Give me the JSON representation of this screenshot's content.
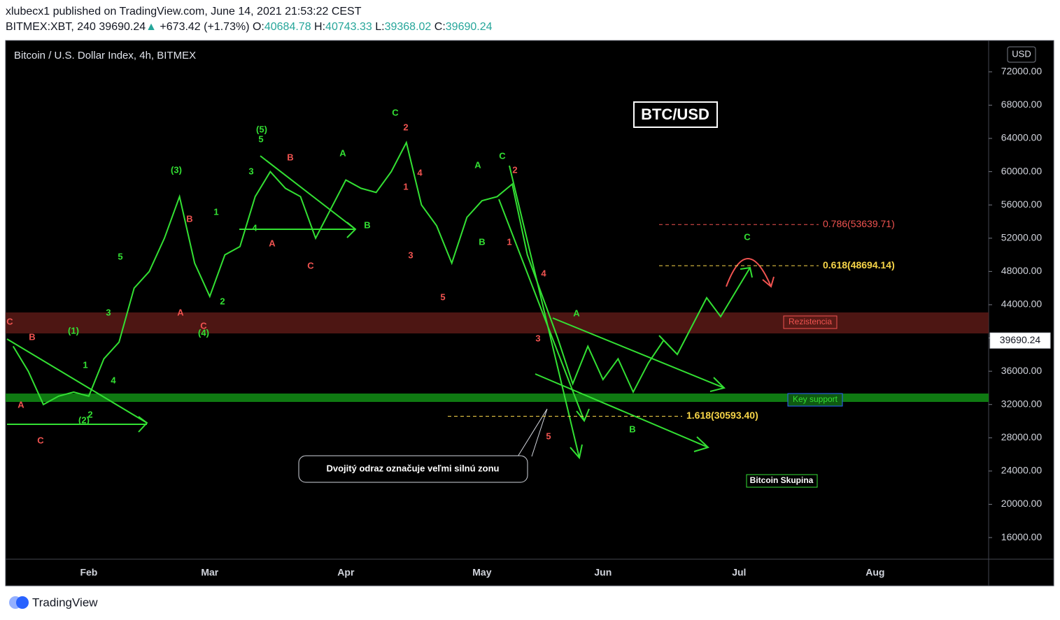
{
  "header": {
    "published": "xlubecx1 published on TradingView.com, June 14, 2021 21:53:22 CEST",
    "symbol": "BITMEX:XBT, 240",
    "last": "39690.24",
    "arrow": "▲",
    "change": "+673.42 (+1.73%)",
    "o_label": "O:",
    "open": "40684.78",
    "h_label": "H:",
    "high": "40743.33",
    "l_label": "L:",
    "low": "39368.02",
    "c_label": "C:",
    "close": "39690.24"
  },
  "footer": {
    "brand": "TradingView"
  },
  "chart_data": {
    "type": "line",
    "title": "Bitcoin / U.S. Dollar Index, 4h, BITMEX",
    "currency": "USD",
    "badge": "BTC/USD",
    "color": "#33e033",
    "categories": [
      null,
      null,
      null,
      null,
      null,
      "Feb",
      null,
      null,
      null,
      null,
      null,
      null,
      null,
      "Mar",
      null,
      null,
      null,
      null,
      null,
      null,
      null,
      null,
      "Apr",
      null,
      null,
      null,
      null,
      null,
      null,
      null,
      null,
      "May",
      null,
      null,
      null,
      null,
      null,
      null,
      null,
      "Jun",
      null,
      null,
      null,
      null,
      null,
      null,
      null,
      null,
      "Jul",
      null,
      null,
      null,
      null,
      null,
      null,
      null,
      null,
      "Aug",
      null,
      null,
      null,
      null,
      null,
      null,
      null
    ],
    "values": [
      39000,
      36000,
      32000,
      33000,
      33500,
      33000,
      37500,
      39500,
      46000,
      48000,
      52000,
      57000,
      49000,
      45000,
      50000,
      51000,
      57000,
      60000,
      58000,
      57000,
      52000,
      55500,
      59000,
      58000,
      57500,
      60000,
      63500,
      56000,
      53500,
      49000,
      54500,
      56500,
      57000,
      58500,
      50000,
      45000,
      40000,
      34500,
      39000,
      35000,
      37500,
      33500,
      37000,
      39690.24,
      null,
      null,
      null,
      null,
      null,
      null,
      null,
      null,
      null,
      null,
      null,
      null,
      null,
      null,
      null,
      null,
      null,
      null,
      null,
      null,
      null
    ],
    "ylim": [
      13400,
      75600
    ],
    "yticks": [
      {
        "value": 16000,
        "label": "16000.00"
      },
      {
        "value": 20000,
        "label": "20000.00"
      },
      {
        "value": 24000,
        "label": "24000.00"
      },
      {
        "value": 28000,
        "label": "28000.00"
      },
      {
        "value": 32000,
        "label": "32000.00"
      },
      {
        "value": 36000,
        "label": "36000.00"
      },
      {
        "value": 40000,
        "label": "40000.00"
      },
      {
        "value": 44000,
        "label": "44000.00"
      },
      {
        "value": 48000,
        "label": "48000.00"
      },
      {
        "value": 52000,
        "label": "52000.00"
      },
      {
        "value": 56000,
        "label": "56000.00"
      },
      {
        "value": 60000,
        "label": "60000.00"
      },
      {
        "value": 64000,
        "label": "64000.00"
      },
      {
        "value": 68000,
        "label": "68000.00"
      },
      {
        "value": 72000,
        "label": "72000.00"
      }
    ],
    "fib_levels": [
      {
        "value": 53639.71,
        "label": "0.786(53639.71)",
        "color": "#f05350"
      },
      {
        "value": 48694.14,
        "label": "0.618(48694.14)",
        "color": "#f7d548"
      },
      {
        "value": 30593.4,
        "label": "1.618(30593.40)",
        "color": "#f7d548"
      }
    ],
    "zones": {
      "resistance": "Rezistencia",
      "support": "Key support",
      "group": "Bitcoin Skupina"
    },
    "callout": "Dvojitý odraz označuje veľmi silnú zonu",
    "annotations": [
      {
        "text": "C",
        "color": "#f05350"
      },
      {
        "text": "B",
        "color": "#f05350"
      },
      {
        "text": "A",
        "color": "#f05350"
      },
      {
        "text": "C",
        "color": "#f05350"
      },
      {
        "text": "(1)",
        "color": "#33e033"
      },
      {
        "text": "1",
        "color": "#33e033"
      },
      {
        "text": "2",
        "color": "#33e033"
      },
      {
        "text": "(2)",
        "color": "#33e033"
      },
      {
        "text": "4",
        "color": "#33e033"
      },
      {
        "text": "3",
        "color": "#33e033"
      },
      {
        "text": "5",
        "color": "#33e033"
      },
      {
        "text": "(3)",
        "color": "#33e033"
      },
      {
        "text": "B",
        "color": "#f05350"
      },
      {
        "text": "A",
        "color": "#f05350"
      },
      {
        "text": "C",
        "color": "#f05350"
      },
      {
        "text": "(4)",
        "color": "#33e033"
      },
      {
        "text": "1",
        "color": "#33e033"
      },
      {
        "text": "2",
        "color": "#33e033"
      },
      {
        "text": "3",
        "color": "#33e033"
      },
      {
        "text": "5",
        "color": "#33e033"
      },
      {
        "text": "(5)",
        "color": "#33e033"
      },
      {
        "text": "4",
        "color": "#33e033"
      },
      {
        "text": "A",
        "color": "#f05350"
      },
      {
        "text": "B",
        "color": "#f05350"
      },
      {
        "text": "C",
        "color": "#f05350"
      },
      {
        "text": "A",
        "color": "#33e033"
      },
      {
        "text": "B",
        "color": "#33e033"
      },
      {
        "text": "C",
        "color": "#33e033"
      },
      {
        "text": "2",
        "color": "#f05350"
      },
      {
        "text": "4",
        "color": "#f05350"
      },
      {
        "text": "1",
        "color": "#f05350"
      },
      {
        "text": "3",
        "color": "#f05350"
      },
      {
        "text": "5",
        "color": "#f05350"
      },
      {
        "text": "A",
        "color": "#33e033"
      },
      {
        "text": "B",
        "color": "#33e033"
      },
      {
        "text": "C",
        "color": "#33e033"
      },
      {
        "text": "2",
        "color": "#f05350"
      },
      {
        "text": "1",
        "color": "#f05350"
      },
      {
        "text": "4",
        "color": "#f05350"
      },
      {
        "text": "3",
        "color": "#f05350"
      },
      {
        "text": "5",
        "color": "#f05350"
      },
      {
        "text": "A",
        "color": "#33e033"
      },
      {
        "text": "B",
        "color": "#33e033"
      },
      {
        "text": "C",
        "color": "#33e033"
      }
    ]
  }
}
